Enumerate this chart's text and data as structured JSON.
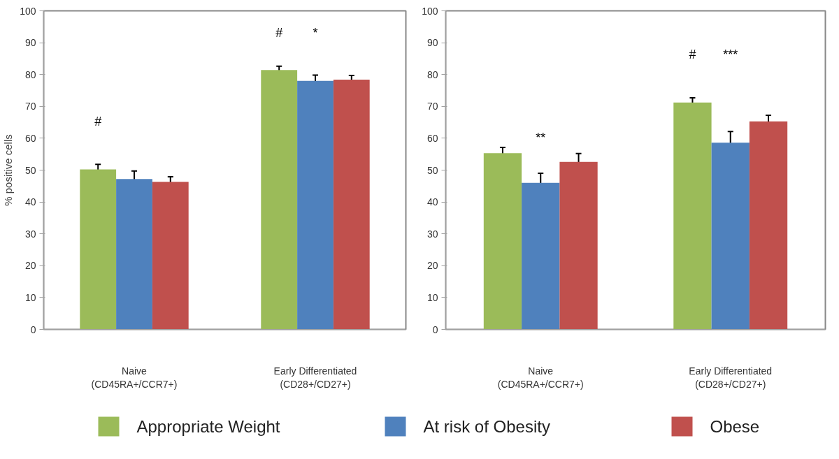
{
  "chart_data": [
    {
      "type": "bar",
      "ylabel": "% positive cells",
      "categories": [
        "Naive\n(CD45RA+/CCR7+)",
        "Early Differentiated\n(CD28+/CD27+)"
      ],
      "ylim": [
        0,
        100
      ],
      "yticks": [
        0,
        10,
        20,
        30,
        40,
        50,
        60,
        70,
        80,
        90,
        100
      ],
      "legend": "bottom",
      "grid": false,
      "series": [
        {
          "name": "Appropriate Weight",
          "color": "#9bbb59",
          "values": [
            50.2,
            81.4
          ],
          "errors": [
            1.6,
            1.2
          ]
        },
        {
          "name": "At risk of Obesity",
          "color": "#4f81bd",
          "values": [
            47.2,
            78.0
          ],
          "errors": [
            2.5,
            1.8
          ]
        },
        {
          "name": "Obese",
          "color": "#c0504d",
          "values": [
            46.3,
            78.4
          ],
          "errors": [
            1.6,
            1.3
          ]
        }
      ],
      "annotations": [
        "#",
        "#",
        "*"
      ]
    },
    {
      "type": "bar",
      "categories": [
        "Naive\n(CD45RA+/CCR7+)",
        "Early Differentiated\n(CD28+/CD27+)"
      ],
      "ylim": [
        0,
        100
      ],
      "yticks": [
        0,
        10,
        20,
        30,
        40,
        50,
        60,
        70,
        80,
        90,
        100
      ],
      "grid": false,
      "series": [
        {
          "color": "#9bbb59",
          "values": [
            55.3,
            71.2
          ],
          "errors": [
            1.8,
            1.5
          ]
        },
        {
          "color": "#4f81bd",
          "values": [
            46.0,
            58.6
          ],
          "errors": [
            3.0,
            3.5
          ]
        },
        {
          "color": "#c0504d",
          "values": [
            52.6,
            65.3
          ],
          "errors": [
            2.6,
            1.9
          ]
        }
      ],
      "annotations": [
        "**",
        "#",
        "***"
      ]
    }
  ]
}
